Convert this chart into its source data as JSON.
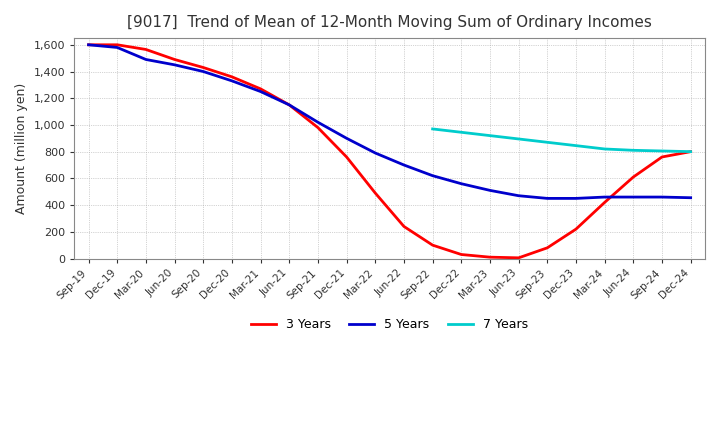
{
  "title": "[9017]  Trend of Mean of 12-Month Moving Sum of Ordinary Incomes",
  "ylabel": "Amount (million yen)",
  "ylim": [
    0,
    1650
  ],
  "yticks": [
    0,
    200,
    400,
    600,
    800,
    1000,
    1200,
    1400,
    1600
  ],
  "background_color": "#ffffff",
  "plot_bg_color": "#ffffff",
  "grid_color": "#aaaaaa",
  "x_labels": [
    "Sep-19",
    "Dec-19",
    "Mar-20",
    "Jun-20",
    "Sep-20",
    "Dec-20",
    "Mar-21",
    "Jun-21",
    "Sep-21",
    "Dec-21",
    "Mar-22",
    "Jun-22",
    "Sep-22",
    "Dec-22",
    "Mar-23",
    "Jun-23",
    "Sep-23",
    "Dec-23",
    "Mar-24",
    "Jun-24",
    "Sep-24",
    "Dec-24"
  ],
  "series": {
    "3yr": {
      "color": "#ff0000",
      "label": "3 Years",
      "values": [
        1600,
        1600,
        1565,
        1490,
        1430,
        1360,
        1270,
        1150,
        980,
        760,
        490,
        240,
        100,
        30,
        10,
        5,
        80,
        220,
        420,
        610,
        760,
        800
      ]
    },
    "5yr": {
      "color": "#0000cc",
      "label": "5 Years",
      "values": [
        1600,
        1580,
        1490,
        1450,
        1400,
        1330,
        1250,
        1150,
        1020,
        900,
        790,
        700,
        620,
        560,
        510,
        470,
        450,
        450,
        460,
        460,
        460,
        455
      ]
    },
    "7yr": {
      "color": "#00cccc",
      "label": "7 Years",
      "values": [
        null,
        null,
        null,
        null,
        null,
        null,
        null,
        null,
        null,
        null,
        null,
        null,
        970,
        945,
        920,
        895,
        870,
        845,
        820,
        810,
        805,
        800
      ]
    },
    "10yr": {
      "color": "#008000",
      "values": [
        null,
        null,
        null,
        null,
        null,
        null,
        null,
        null,
        null,
        null,
        null,
        null,
        null,
        null,
        null,
        null,
        null,
        null,
        null,
        null,
        null,
        null
      ]
    }
  }
}
